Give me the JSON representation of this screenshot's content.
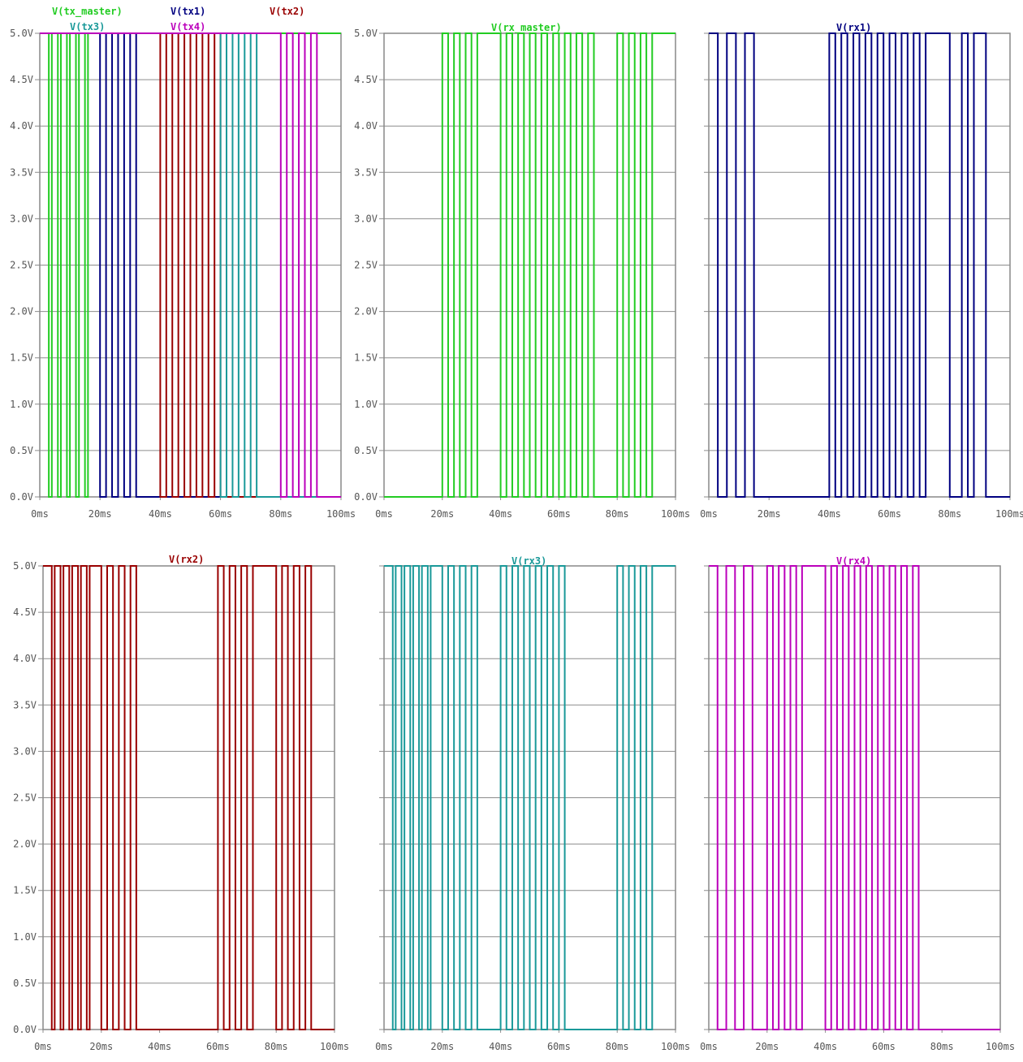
{
  "chart_data": [
    {
      "type": "line",
      "legend": [
        "V(tx_master)",
        "V(tx1)",
        "V(tx2)",
        "V(tx3)",
        "V(tx4)"
      ],
      "x_tick_labels": [
        "0ms",
        "20ms",
        "40ms",
        "60ms",
        "80ms",
        "100ms"
      ],
      "y_tick_labels": [
        "0.0V",
        "0.5V",
        "1.0V",
        "1.5V",
        "2.0V",
        "2.5V",
        "3.0V",
        "3.5V",
        "4.0V",
        "4.5V",
        "5.0V"
      ],
      "xlim": [
        0,
        100
      ],
      "ylim": [
        0,
        5
      ],
      "grid": true,
      "series": [
        {
          "name": "V(tx_master)",
          "color": "#22cc22",
          "baseline": 5,
          "x": [
            0,
            3,
            3,
            4,
            4,
            6,
            6,
            7,
            7,
            9,
            9,
            10,
            10,
            12,
            12,
            13,
            13,
            15,
            15,
            16,
            16,
            100
          ],
          "y": [
            5,
            5,
            0,
            0,
            5,
            5,
            0,
            0,
            5,
            5,
            0,
            0,
            5,
            5,
            0,
            0,
            5,
            5,
            0,
            0,
            5,
            5
          ]
        },
        {
          "name": "V(tx1)",
          "color": "#000080",
          "baseline": 5,
          "x": [
            0,
            20,
            20,
            22,
            22,
            24,
            24,
            26,
            26,
            28,
            28,
            30,
            30,
            32,
            32,
            100
          ],
          "y": [
            5,
            5,
            0,
            0,
            5,
            5,
            0,
            0,
            5,
            5,
            0,
            0,
            5,
            5,
            0,
            0
          ]
        },
        {
          "name": "V(tx2)",
          "color": "#990000",
          "baseline": 5,
          "x": [
            0,
            40,
            40,
            42,
            42,
            44,
            44,
            46,
            46,
            48,
            48,
            50,
            50,
            52,
            52,
            54,
            54,
            56,
            56,
            58,
            58,
            60,
            60,
            100
          ],
          "y": [
            5,
            5,
            0,
            0,
            5,
            5,
            0,
            0,
            5,
            5,
            0,
            0,
            5,
            5,
            0,
            0,
            5,
            5,
            0,
            0,
            5,
            5,
            0,
            0
          ]
        },
        {
          "name": "V(tx3)",
          "color": "#1a9999",
          "baseline": 5,
          "x": [
            0,
            60,
            60,
            62,
            62,
            64,
            64,
            66,
            66,
            68,
            68,
            70,
            70,
            72,
            72,
            100
          ],
          "y": [
            5,
            5,
            0,
            0,
            5,
            5,
            0,
            0,
            5,
            5,
            0,
            0,
            5,
            5,
            0,
            0
          ]
        },
        {
          "name": "V(tx4)",
          "color": "#bb00bb",
          "baseline": 5,
          "x": [
            0,
            80,
            80,
            82,
            82,
            84,
            84,
            86,
            86,
            88,
            88,
            90,
            90,
            92,
            92,
            100
          ],
          "y": [
            5,
            5,
            0,
            0,
            5,
            5,
            0,
            0,
            5,
            5,
            0,
            0,
            5,
            5,
            0,
            0
          ]
        }
      ]
    },
    {
      "type": "line",
      "legend": [
        "V(rx_master)"
      ],
      "x_tick_labels": [
        "0ms",
        "20ms",
        "40ms",
        "60ms",
        "80ms",
        "100ms"
      ],
      "y_tick_labels": [
        "0.0V",
        "0.5V",
        "1.0V",
        "1.5V",
        "2.0V",
        "2.5V",
        "3.0V",
        "3.5V",
        "4.0V",
        "4.5V",
        "5.0V"
      ],
      "xlim": [
        0,
        100
      ],
      "ylim": [
        0,
        5
      ],
      "grid": true,
      "series": [
        {
          "name": "V(rx_master)",
          "color": "#22cc22",
          "baseline": 5,
          "x": [
            0,
            20,
            20,
            22,
            22,
            24,
            24,
            26,
            26,
            28,
            28,
            30,
            30,
            32,
            32,
            40,
            40,
            42,
            42,
            44,
            44,
            46,
            46,
            48,
            48,
            50,
            50,
            52,
            52,
            54,
            54,
            56,
            56,
            58,
            58,
            60,
            60,
            62,
            62,
            64,
            64,
            66,
            66,
            68,
            68,
            70,
            70,
            72,
            72,
            80,
            80,
            82,
            82,
            84,
            84,
            86,
            86,
            88,
            88,
            90,
            90,
            92,
            92,
            100
          ],
          "y": [
            0,
            0,
            5,
            5,
            0,
            0,
            5,
            5,
            0,
            0,
            5,
            5,
            0,
            0,
            5,
            5,
            0,
            0,
            5,
            5,
            0,
            0,
            5,
            5,
            0,
            0,
            5,
            5,
            0,
            0,
            5,
            5,
            0,
            0,
            5,
            5,
            0,
            0,
            5,
            5,
            0,
            0,
            5,
            5,
            0,
            0,
            5,
            5,
            0,
            0,
            5,
            5,
            0,
            0,
            5,
            5,
            0,
            0,
            5,
            5,
            0,
            0,
            5,
            5
          ]
        }
      ]
    },
    {
      "type": "line",
      "legend": [
        "V(rx1)"
      ],
      "x_tick_labels": [
        "0ms",
        "20ms",
        "40ms",
        "60ms",
        "80ms",
        "100ms"
      ],
      "y_tick_labels": [],
      "xlim": [
        0,
        100
      ],
      "ylim": [
        0,
        5
      ],
      "grid": true,
      "series": [
        {
          "name": "V(rx1)",
          "color": "#000080",
          "baseline": 5,
          "x": [
            0,
            3,
            3,
            6,
            6,
            9,
            9,
            12,
            12,
            15,
            15,
            40,
            40,
            42,
            42,
            44,
            44,
            46,
            46,
            48,
            48,
            50,
            50,
            52,
            52,
            54,
            54,
            56,
            56,
            58,
            58,
            60,
            60,
            62,
            62,
            64,
            64,
            66,
            66,
            68,
            68,
            70,
            70,
            72,
            72,
            80,
            80,
            84,
            84,
            86,
            86,
            88,
            88,
            92,
            92,
            100
          ],
          "y": [
            5,
            5,
            0,
            0,
            5,
            5,
            0,
            0,
            5,
            5,
            0,
            0,
            5,
            5,
            0,
            0,
            5,
            5,
            0,
            0,
            5,
            5,
            0,
            0,
            5,
            5,
            0,
            0,
            5,
            5,
            0,
            0,
            5,
            5,
            0,
            0,
            5,
            5,
            0,
            0,
            5,
            5,
            0,
            0,
            5,
            5,
            0,
            0,
            5,
            5,
            0,
            0,
            5,
            5,
            0,
            0
          ]
        }
      ]
    },
    {
      "type": "line",
      "legend": [
        "V(rx2)"
      ],
      "x_tick_labels": [
        "0ms",
        "20ms",
        "40ms",
        "60ms",
        "80ms",
        "100ms"
      ],
      "y_tick_labels": [
        "0.0V",
        "0.5V",
        "1.0V",
        "1.5V",
        "2.0V",
        "2.5V",
        "3.0V",
        "3.5V",
        "4.0V",
        "4.5V",
        "5.0V"
      ],
      "xlim": [
        0,
        100
      ],
      "ylim": [
        0,
        5
      ],
      "grid": true,
      "series": [
        {
          "name": "V(rx2)",
          "color": "#990000",
          "baseline": 5,
          "x": [
            0,
            3,
            3,
            4,
            4,
            6,
            6,
            7,
            7,
            9,
            9,
            10,
            10,
            12,
            12,
            13,
            13,
            15,
            15,
            16,
            16,
            20,
            20,
            22,
            22,
            24,
            24,
            26,
            26,
            28,
            28,
            30,
            30,
            32,
            32,
            60,
            60,
            62,
            62,
            64,
            64,
            66,
            66,
            68,
            68,
            70,
            70,
            72,
            72,
            80,
            80,
            82,
            82,
            84,
            84,
            86,
            86,
            88,
            88,
            90,
            90,
            92,
            92,
            100
          ],
          "y": [
            5,
            5,
            0,
            0,
            5,
            5,
            0,
            0,
            5,
            5,
            0,
            0,
            5,
            5,
            0,
            0,
            5,
            5,
            0,
            0,
            5,
            5,
            0,
            0,
            5,
            5,
            0,
            0,
            5,
            5,
            0,
            0,
            5,
            5,
            0,
            0,
            5,
            5,
            0,
            0,
            5,
            5,
            0,
            0,
            5,
            5,
            0,
            0,
            5,
            5,
            0,
            0,
            5,
            5,
            0,
            0,
            5,
            5,
            0,
            0,
            5,
            5,
            0,
            0
          ]
        }
      ]
    },
    {
      "type": "line",
      "legend": [
        "V(rx3)"
      ],
      "x_tick_labels": [
        "0ms",
        "20ms",
        "40ms",
        "60ms",
        "80ms",
        "100ms"
      ],
      "y_tick_labels": [],
      "xlim": [
        0,
        100
      ],
      "ylim": [
        0,
        5
      ],
      "grid": true,
      "series": [
        {
          "name": "V(rx3)",
          "color": "#1a9999",
          "baseline": 5,
          "x": [
            0,
            3,
            3,
            4,
            4,
            6,
            6,
            7,
            7,
            9,
            9,
            10,
            10,
            12,
            12,
            13,
            13,
            15,
            15,
            16,
            16,
            20,
            20,
            22,
            22,
            24,
            24,
            26,
            26,
            28,
            28,
            30,
            30,
            32,
            32,
            40,
            40,
            42,
            42,
            44,
            44,
            46,
            46,
            48,
            48,
            50,
            50,
            52,
            52,
            54,
            54,
            56,
            56,
            58,
            58,
            60,
            60,
            62,
            62,
            80,
            80,
            82,
            82,
            84,
            84,
            86,
            86,
            88,
            88,
            90,
            90,
            92,
            92,
            100
          ],
          "y": [
            5,
            5,
            0,
            0,
            5,
            5,
            0,
            0,
            5,
            5,
            0,
            0,
            5,
            5,
            0,
            0,
            5,
            5,
            0,
            0,
            5,
            5,
            0,
            0,
            5,
            5,
            0,
            0,
            5,
            5,
            0,
            0,
            5,
            5,
            0,
            0,
            5,
            5,
            0,
            0,
            5,
            5,
            0,
            0,
            5,
            5,
            0,
            0,
            5,
            5,
            0,
            0,
            5,
            5,
            0,
            0,
            5,
            5,
            0,
            0,
            5,
            5,
            0,
            0,
            5,
            5,
            0,
            0,
            5,
            5,
            0,
            0,
            5,
            5
          ]
        }
      ]
    },
    {
      "type": "line",
      "legend": [
        "V(rx4)"
      ],
      "x_tick_labels": [
        "0ms",
        "20ms",
        "40ms",
        "60ms",
        "80ms",
        "100ms"
      ],
      "y_tick_labels": [],
      "xlim": [
        0,
        100
      ],
      "ylim": [
        0,
        5
      ],
      "grid": true,
      "series": [
        {
          "name": "V(rx4)",
          "color": "#bb00bb",
          "baseline": 5,
          "x": [
            0,
            3,
            3,
            6,
            6,
            9,
            9,
            12,
            12,
            15,
            15,
            20,
            20,
            22,
            22,
            24,
            24,
            26,
            26,
            28,
            28,
            30,
            30,
            32,
            32,
            40,
            40,
            42,
            42,
            44,
            44,
            46,
            46,
            48,
            48,
            50,
            50,
            52,
            52,
            54,
            54,
            56,
            56,
            58,
            58,
            60,
            60,
            62,
            62,
            64,
            64,
            66,
            66,
            68,
            68,
            70,
            70,
            72,
            72,
            100
          ],
          "y": [
            5,
            5,
            0,
            0,
            5,
            5,
            0,
            0,
            5,
            5,
            0,
            0,
            5,
            5,
            0,
            0,
            5,
            5,
            0,
            0,
            5,
            5,
            0,
            0,
            5,
            5,
            0,
            0,
            5,
            5,
            0,
            0,
            5,
            5,
            0,
            0,
            5,
            5,
            0,
            0,
            5,
            5,
            0,
            0,
            5,
            5,
            0,
            0,
            5,
            5,
            0,
            0,
            5,
            5,
            0,
            0,
            5,
            5,
            0,
            0
          ]
        }
      ]
    }
  ],
  "colors": {
    "grid": "#8c8c8c",
    "frame": "#888888",
    "tick_text": "#555555",
    "background": "#ffffff"
  }
}
